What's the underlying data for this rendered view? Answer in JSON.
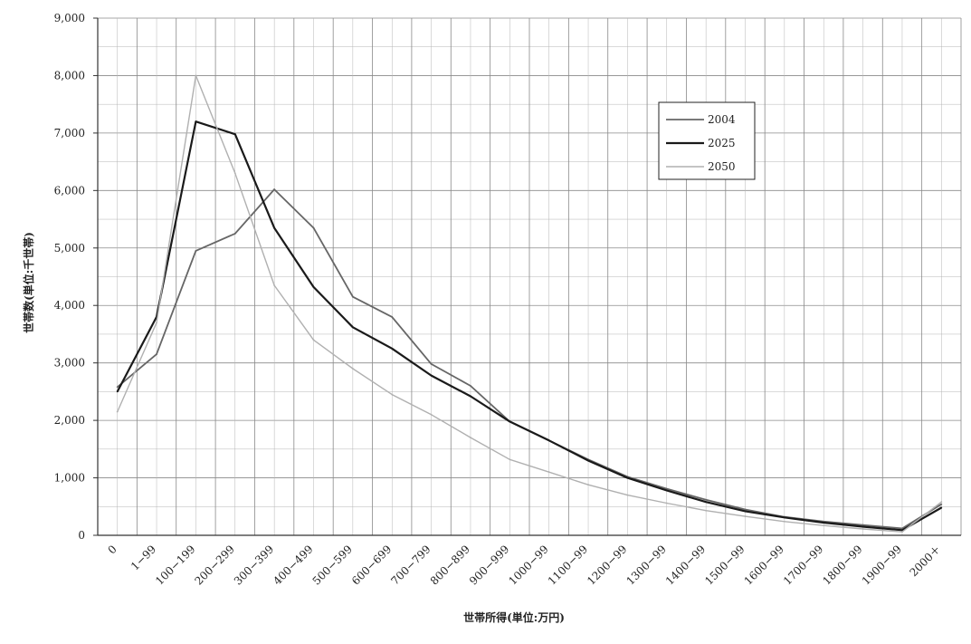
{
  "chart_data": {
    "type": "line",
    "xlabel": "世帯所得(単位:万円)",
    "ylabel": "世帯数(単位:千世帯)",
    "ylim": [
      0,
      9000
    ],
    "yticks": [
      "0",
      "1,000",
      "2,000",
      "3,000",
      "4,000",
      "5,000",
      "6,000",
      "7,000",
      "8,000",
      "9,000"
    ],
    "ytick_values": [
      0,
      1000,
      2000,
      3000,
      4000,
      5000,
      6000,
      7000,
      8000,
      9000
    ],
    "grid": true,
    "legend_position": "top-right",
    "categories": [
      "0",
      "1−99",
      "100−199",
      "200−299",
      "300−399",
      "400−499",
      "500−599",
      "600−699",
      "700−799",
      "800−899",
      "900−999",
      "1000−99",
      "1100−99",
      "1200−99",
      "1300−99",
      "1400−99",
      "1500−99",
      "1600−99",
      "1700−99",
      "1800−99",
      "1900−99",
      "2000＋"
    ],
    "series": [
      {
        "name": "2004",
        "color": "#666666",
        "values": [
          2580,
          3150,
          4950,
          5250,
          6020,
          5350,
          4150,
          3800,
          2980,
          2600,
          1980,
          1650,
          1320,
          1020,
          810,
          620,
          450,
          320,
          240,
          180,
          120,
          540
        ]
      },
      {
        "name": "2025",
        "color": "#1a1a1a",
        "values": [
          2500,
          3800,
          7200,
          6980,
          5350,
          4320,
          3620,
          3250,
          2780,
          2420,
          1980,
          1650,
          1300,
          1000,
          780,
          580,
          420,
          310,
          220,
          150,
          90,
          480
        ]
      },
      {
        "name": "2050",
        "color": "#b0b0b0",
        "values": [
          2150,
          3700,
          8000,
          6300,
          4350,
          3400,
          2900,
          2450,
          2100,
          1700,
          1320,
          1100,
          880,
          700,
          560,
          430,
          330,
          240,
          170,
          110,
          60,
          580
        ]
      }
    ]
  }
}
